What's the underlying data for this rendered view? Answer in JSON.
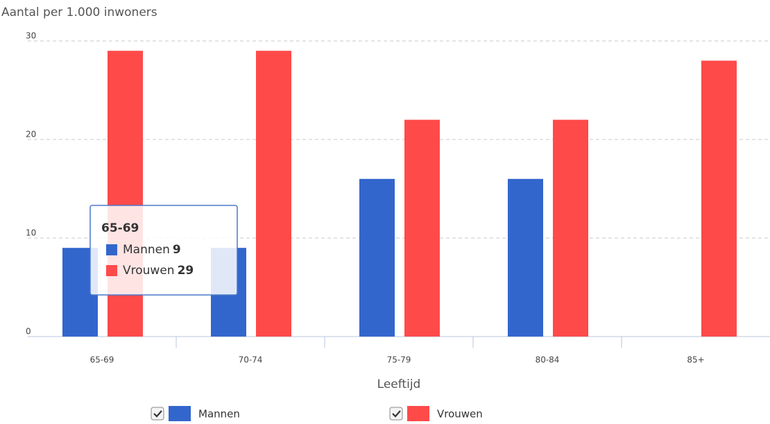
{
  "chart_data": {
    "type": "bar",
    "ylabel": "Aantal per 1.000 inwoners",
    "xlabel": "Leeftijd",
    "categories": [
      "65-69",
      "70-74",
      "75-79",
      "80-84",
      "85+"
    ],
    "series": [
      {
        "name": "Mannen",
        "color": "#3366cc",
        "values": [
          9,
          9,
          16,
          16,
          null
        ]
      },
      {
        "name": "Vrouwen",
        "color": "#ff4a4a",
        "values": [
          29,
          29,
          22,
          22,
          28
        ]
      }
    ],
    "ylim": [
      0,
      30
    ],
    "yticks": [
      0,
      10,
      20,
      30
    ],
    "grid": true
  }
}
